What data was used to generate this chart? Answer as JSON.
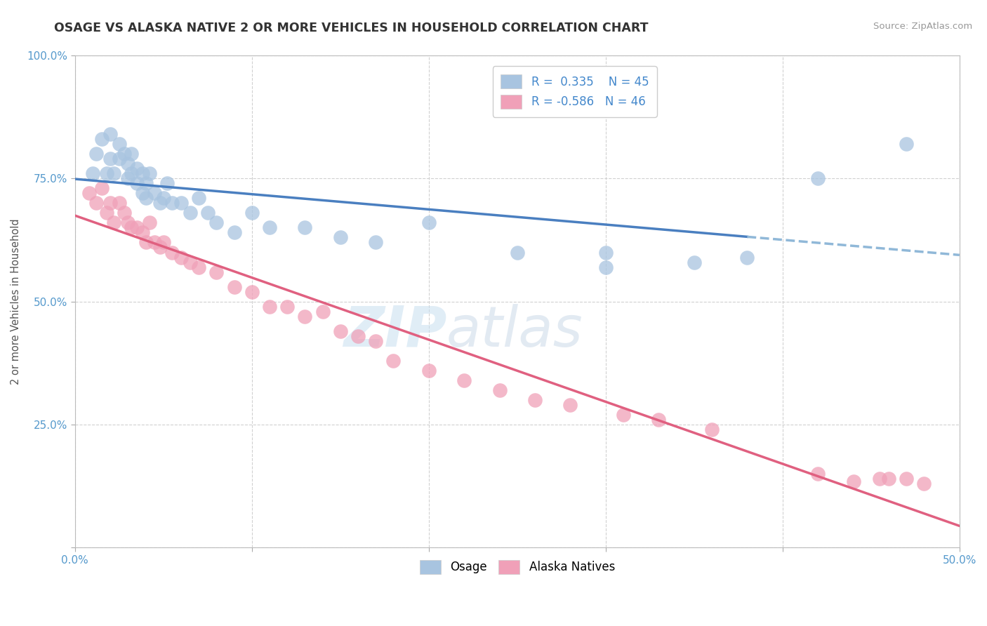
{
  "title": "OSAGE VS ALASKA NATIVE 2 OR MORE VEHICLES IN HOUSEHOLD CORRELATION CHART",
  "source": "Source: ZipAtlas.com",
  "ylabel": "2 or more Vehicles in Household",
  "xmin": 0.0,
  "xmax": 0.5,
  "ymin": 0.0,
  "ymax": 1.0,
  "blue_color": "#a8c4e0",
  "pink_color": "#f0a0b8",
  "blue_line_color": "#4a7fc0",
  "pink_line_color": "#e06080",
  "blue_dashed_color": "#90b8d8",
  "watermark_zip": "ZIP",
  "watermark_atlas": "atlas",
  "legend_r1_label": "R = ",
  "legend_r1_val": "0.335",
  "legend_n1": "N = 45",
  "legend_r2_label": "R = ",
  "legend_r2_val": "-0.586",
  "legend_n2": "N = 46",
  "osage_x": [
    0.01,
    0.012,
    0.015,
    0.018,
    0.02,
    0.02,
    0.022,
    0.025,
    0.025,
    0.028,
    0.03,
    0.03,
    0.032,
    0.032,
    0.035,
    0.035,
    0.038,
    0.038,
    0.04,
    0.04,
    0.042,
    0.045,
    0.048,
    0.05,
    0.052,
    0.055,
    0.06,
    0.065,
    0.07,
    0.075,
    0.08,
    0.09,
    0.1,
    0.11,
    0.13,
    0.15,
    0.17,
    0.2,
    0.25,
    0.3,
    0.3,
    0.35,
    0.38,
    0.42,
    0.47
  ],
  "osage_y": [
    0.76,
    0.8,
    0.83,
    0.76,
    0.84,
    0.79,
    0.76,
    0.82,
    0.79,
    0.8,
    0.75,
    0.78,
    0.76,
    0.8,
    0.74,
    0.77,
    0.72,
    0.76,
    0.71,
    0.74,
    0.76,
    0.72,
    0.7,
    0.71,
    0.74,
    0.7,
    0.7,
    0.68,
    0.71,
    0.68,
    0.66,
    0.64,
    0.68,
    0.65,
    0.65,
    0.63,
    0.62,
    0.66,
    0.6,
    0.6,
    0.57,
    0.58,
    0.59,
    0.75,
    0.82
  ],
  "alaska_x": [
    0.008,
    0.012,
    0.015,
    0.018,
    0.02,
    0.022,
    0.025,
    0.028,
    0.03,
    0.032,
    0.035,
    0.038,
    0.04,
    0.042,
    0.045,
    0.048,
    0.05,
    0.055,
    0.06,
    0.065,
    0.07,
    0.08,
    0.09,
    0.1,
    0.11,
    0.12,
    0.13,
    0.14,
    0.15,
    0.16,
    0.17,
    0.18,
    0.2,
    0.22,
    0.24,
    0.26,
    0.28,
    0.31,
    0.33,
    0.36,
    0.42,
    0.44,
    0.455,
    0.46,
    0.47,
    0.48
  ],
  "alaska_y": [
    0.72,
    0.7,
    0.73,
    0.68,
    0.7,
    0.66,
    0.7,
    0.68,
    0.66,
    0.65,
    0.65,
    0.64,
    0.62,
    0.66,
    0.62,
    0.61,
    0.62,
    0.6,
    0.59,
    0.58,
    0.57,
    0.56,
    0.53,
    0.52,
    0.49,
    0.49,
    0.47,
    0.48,
    0.44,
    0.43,
    0.42,
    0.38,
    0.36,
    0.34,
    0.32,
    0.3,
    0.29,
    0.27,
    0.26,
    0.24,
    0.15,
    0.135,
    0.14,
    0.14,
    0.14,
    0.13
  ]
}
